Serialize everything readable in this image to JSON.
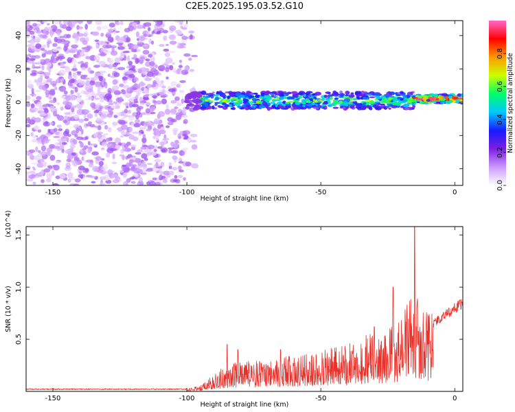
{
  "title": "C2E5.2025.195.03.52.G10",
  "chart_data": [
    {
      "type": "heatmap",
      "xlabel": "Height of straight line (km)",
      "ylabel": "Frequency (Hz)",
      "xlim": [
        -160,
        3
      ],
      "ylim": [
        -50,
        49
      ],
      "xticks": [
        -150,
        -100,
        -50,
        0
      ],
      "yticks": [
        -40,
        -20,
        0,
        20,
        40
      ],
      "colorbar": {
        "label": "Normalized spectral amplitude",
        "range": [
          0,
          1
        ],
        "ticks": [
          "0.0",
          "0.2",
          "0.4",
          "0.6",
          "0.8"
        ],
        "tick_values": [
          0,
          0.2,
          0.4,
          0.6,
          0.8
        ],
        "colormap": [
          "#ffffff",
          "#cc99ff",
          "#7a1fe0",
          "#1a1aff",
          "#00c8ff",
          "#00ff66",
          "#ccff00",
          "#ff9900",
          "#ff0000",
          "#ff66cc"
        ]
      },
      "regions": [
        {
          "x_range": [
            -160,
            -97
          ],
          "freq_range": [
            -50,
            49
          ],
          "amplitude": 0.1,
          "description": "noise"
        },
        {
          "x_range": [
            -100,
            -15
          ],
          "freq_center": 1,
          "freq_halfwidth": 5,
          "amplitude": 0.55
        },
        {
          "x_range": [
            -15,
            3
          ],
          "freq_center": 2,
          "freq_halfwidth": 2.5,
          "amplitude": 0.85
        },
        {
          "x_range": [
            -10,
            -4
          ],
          "freq_center": 2,
          "freq_halfwidth": 1,
          "amplitude": 1.0
        }
      ]
    },
    {
      "type": "line",
      "xlabel": "Height of straight line (km)",
      "ylabel": "SNR (10 * v/v)",
      "y_multiplier": "(x10^4)",
      "xlim": [
        -160,
        3
      ],
      "ylim": [
        0,
        1.58
      ],
      "xticks": [
        -150,
        -100,
        -50,
        0
      ],
      "yticks": [
        "0.5",
        "1.0",
        "1.5"
      ],
      "ytick_values": [
        0.5,
        1.0,
        1.5
      ],
      "series": [
        {
          "color": "#e8312a",
          "envelope_x": [
            -160,
            -100,
            -95,
            -90,
            -85,
            -80,
            -70,
            -60,
            -50,
            -40,
            -30,
            -25,
            -20,
            -18,
            -15,
            -13,
            -10,
            -5,
            0,
            3
          ],
          "envelope_y": [
            0.02,
            0.02,
            0.05,
            0.15,
            0.22,
            0.25,
            0.28,
            0.3,
            0.35,
            0.4,
            0.5,
            0.55,
            0.6,
            0.75,
            0.8,
            0.75,
            0.65,
            0.75,
            0.85,
            0.9
          ],
          "peaks": [
            {
              "x": -85,
              "y": 0.45
            },
            {
              "x": -81,
              "y": 0.4
            },
            {
              "x": -65,
              "y": 0.4
            },
            {
              "x": -30,
              "y": 0.62
            },
            {
              "x": -23,
              "y": 1.0
            },
            {
              "x": -15,
              "y": 1.6
            }
          ]
        }
      ]
    }
  ]
}
